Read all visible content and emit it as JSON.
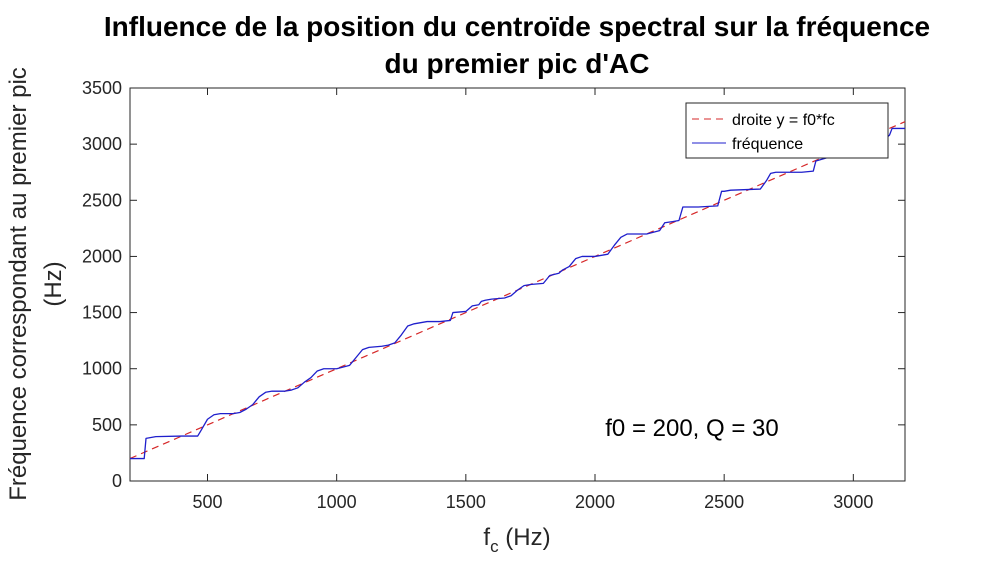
{
  "chart_data": {
    "type": "line",
    "title_line1": "Influence de la position du centroïde spectral sur la fréquence",
    "title_line2": "du premier pic d'AC",
    "xlabel_base": "f",
    "xlabel_sub": "c",
    "xlabel_unit": " (Hz)",
    "ylabel_line1": "Fréquence correspondant au premier pic",
    "ylabel_line2": "(Hz)",
    "xlim": [
      200,
      3200
    ],
    "ylim": [
      0,
      3500
    ],
    "xticks": [
      500,
      1000,
      1500,
      2000,
      2500,
      3000
    ],
    "yticks": [
      0,
      500,
      1000,
      1500,
      2000,
      2500,
      3000,
      3500
    ],
    "grid": false,
    "legend_position": "top-right",
    "annotation": "f0 = 200, Q = 30",
    "colors": {
      "line_series": "#d62728",
      "step_series": "#1f1fcc",
      "axis": "#262626"
    },
    "series": [
      {
        "name": "droite y = f0*fc",
        "style": "dashed",
        "x": [
          200,
          3200
        ],
        "y": [
          200,
          3200
        ]
      },
      {
        "name": "fréquence",
        "style": "solid",
        "x": [
          200,
          255,
          262,
          300,
          400,
          462,
          475,
          500,
          525,
          550,
          600,
          625,
          650,
          675,
          700,
          725,
          750,
          800,
          825,
          850,
          875,
          900,
          925,
          950,
          1000,
          1050,
          1075,
          1100,
          1125,
          1175,
          1200,
          1225,
          1250,
          1275,
          1300,
          1325,
          1350,
          1400,
          1440,
          1450,
          1500,
          1525,
          1550,
          1560,
          1575,
          1600,
          1650,
          1675,
          1700,
          1725,
          1750,
          1800,
          1825,
          1860,
          1875,
          1900,
          1925,
          1950,
          2000,
          2050,
          2075,
          2100,
          2125,
          2200,
          2250,
          2270,
          2300,
          2325,
          2340,
          2400,
          2475,
          2490,
          2500,
          2525,
          2640,
          2665,
          2680,
          2700,
          2800,
          2845,
          2855,
          2900,
          3000,
          3100,
          3140,
          3150,
          3200
        ],
        "y": [
          200,
          200,
          380,
          395,
          400,
          400,
          450,
          550,
          590,
          600,
          600,
          610,
          640,
          680,
          750,
          790,
          800,
          800,
          810,
          830,
          880,
          920,
          980,
          1000,
          1000,
          1030,
          1100,
          1170,
          1190,
          1200,
          1210,
          1230,
          1300,
          1380,
          1400,
          1410,
          1420,
          1420,
          1430,
          1500,
          1510,
          1560,
          1570,
          1600,
          1610,
          1620,
          1630,
          1650,
          1700,
          1740,
          1750,
          1760,
          1830,
          1850,
          1880,
          1910,
          1980,
          2000,
          2000,
          2020,
          2100,
          2170,
          2200,
          2200,
          2230,
          2300,
          2310,
          2320,
          2440,
          2440,
          2450,
          2580,
          2580,
          2590,
          2600,
          2680,
          2740,
          2750,
          2750,
          2760,
          2850,
          2880,
          2880,
          3000,
          3080,
          3140,
          3140
        ]
      }
    ]
  }
}
